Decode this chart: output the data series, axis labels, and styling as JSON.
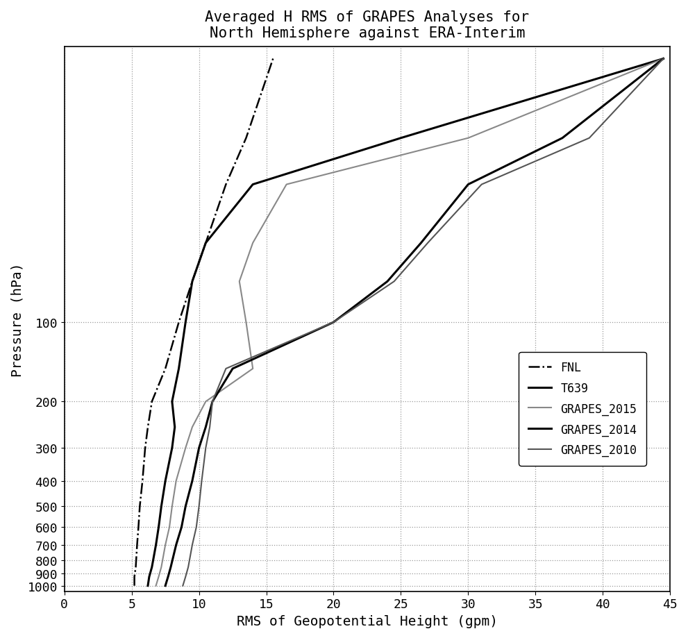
{
  "title": "Averaged H RMS of GRAPES Analyses for\nNorth Hemisphere against ERA-Interim",
  "xlabel": "RMS of Geopotential Height (gpm)",
  "ylabel": "Pressure (hPa)",
  "xlim": [
    0,
    45
  ],
  "xticks": [
    0,
    5,
    10,
    15,
    20,
    25,
    30,
    35,
    40,
    45
  ],
  "pressure_levels": [
    1000,
    925,
    850,
    700,
    600,
    500,
    400,
    300,
    250,
    200,
    150,
    100,
    70,
    50,
    30,
    20,
    10
  ],
  "series": {
    "FNL": {
      "style": "-.",
      "color": "black",
      "linewidth": 1.8,
      "rms": [
        5.2,
        5.2,
        5.3,
        5.4,
        5.5,
        5.6,
        5.8,
        6.0,
        6.2,
        6.5,
        7.5,
        8.5,
        9.5,
        10.5,
        12.0,
        13.5,
        15.5
      ]
    },
    "T639": {
      "style": "-",
      "color": "black",
      "linewidth": 2.2,
      "rms": [
        6.2,
        6.3,
        6.5,
        6.8,
        7.0,
        7.2,
        7.5,
        8.0,
        8.2,
        8.0,
        8.5,
        9.0,
        9.5,
        10.5,
        14.0,
        25.0,
        44.5
      ]
    },
    "GRAPES_2015": {
      "style": "-",
      "color": "#888888",
      "linewidth": 1.5,
      "rms": [
        6.8,
        7.0,
        7.2,
        7.5,
        7.8,
        8.0,
        8.3,
        9.0,
        9.5,
        10.5,
        14.0,
        13.5,
        13.0,
        14.0,
        16.5,
        30.0,
        44.5
      ]
    },
    "GRAPES_2014": {
      "style": "-",
      "color": "black",
      "linewidth": 2.2,
      "rms": [
        7.5,
        7.7,
        7.9,
        8.3,
        8.7,
        9.0,
        9.5,
        10.0,
        10.5,
        11.0,
        12.5,
        20.0,
        24.0,
        26.5,
        30.0,
        37.0,
        44.5
      ]
    },
    "GRAPES_2010": {
      "style": "-",
      "color": "#555555",
      "linewidth": 1.5,
      "rms": [
        8.8,
        9.0,
        9.2,
        9.5,
        9.8,
        10.0,
        10.2,
        10.5,
        10.8,
        11.0,
        12.0,
        20.0,
        24.5,
        27.0,
        31.0,
        39.0,
        44.5
      ]
    }
  },
  "yticks": [
    1000,
    900,
    800,
    700,
    600,
    500,
    400,
    300,
    200,
    100
  ],
  "legend_labels": [
    "FNL",
    "T639",
    "GRAPES_2015",
    "GRAPES_2014",
    "GRAPES_2010"
  ],
  "legend_styles": [
    "-.",
    "-",
    "-",
    "-",
    "-"
  ],
  "legend_colors": [
    "black",
    "black",
    "#888888",
    "black",
    "#555555"
  ],
  "legend_linewidths": [
    1.8,
    2.2,
    1.5,
    2.2,
    1.5
  ],
  "background_color": "white",
  "grid_color": "#999999"
}
